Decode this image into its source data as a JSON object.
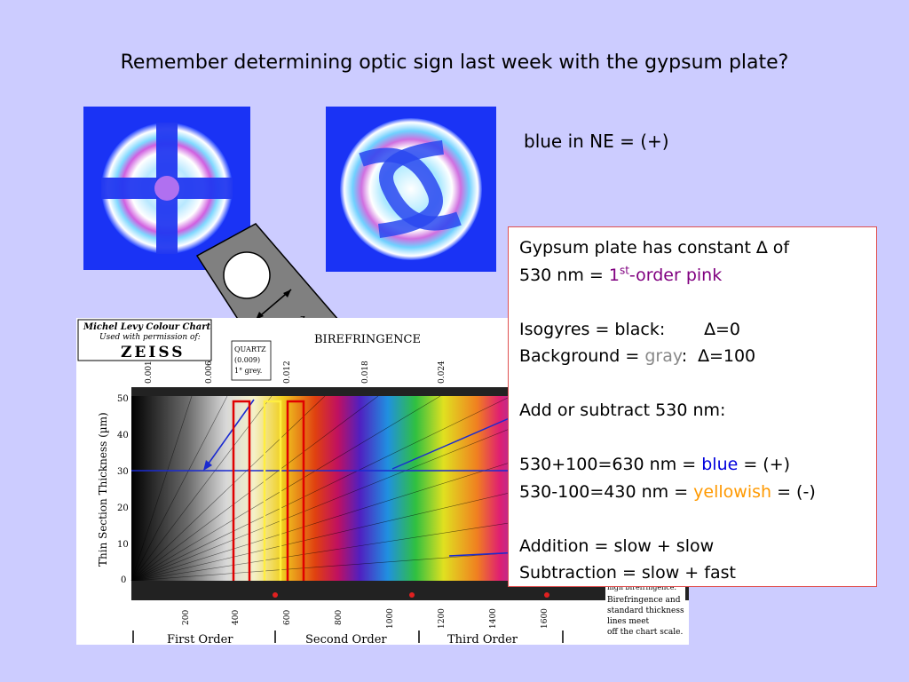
{
  "title": "Remember determining optic sign last week with the gypsum plate?",
  "sign_note": "blue in NE = (+)",
  "textbox": {
    "l1": "Gypsum plate has constant ",
    "delta": "∆",
    "l1b": " of",
    "l2a": "530 nm = ",
    "l2_num": "1",
    "l2_sup": "st",
    "l2_rest": "-order pink",
    "iso_label": "Isogyres = black:",
    "iso_val": "∆=0",
    "bg_label": "Background = ",
    "bg_color": "gray",
    "bg_colon": ":",
    "bg_val": "∆=100",
    "addsub": "Add or subtract 530 nm:",
    "add_a": "530+100=630 nm = ",
    "add_color": "blue",
    "add_b": " = (+)",
    "sub_a": "530-100=430 nm = ",
    "sub_color": "yellowish",
    "sub_b": " = (-)",
    "addition": "Addition = slow + slow",
    "subtraction": "Subtraction = slow + fast"
  },
  "chart": {
    "heading_line1": "Michel Levy Colour Chart",
    "heading_line2": "Used with permission of:",
    "logo": "ZEISS",
    "title": "BIREFRINGENCE",
    "quartz": [
      "QUARTZ",
      "(0.009)",
      "1° grey."
    ],
    "birefringence_ticks": [
      "0.001",
      "0.006",
      "0.009",
      "0.012",
      "0.018",
      "0.024"
    ],
    "ylabel": "Thin Section Thickness (µm)",
    "yticks": [
      "50",
      "40",
      "30",
      "20",
      "10",
      "0"
    ],
    "xticks": [
      "200",
      "400",
      "600",
      "800",
      "1000",
      "1200",
      "1400",
      "1600"
    ],
    "orders": [
      "First Order",
      "Second Order",
      "Third Order"
    ],
    "note": [
      "high birefringence.",
      "Birefringence and",
      "standard thickness",
      "lines meet",
      "off the chart scale."
    ]
  }
}
